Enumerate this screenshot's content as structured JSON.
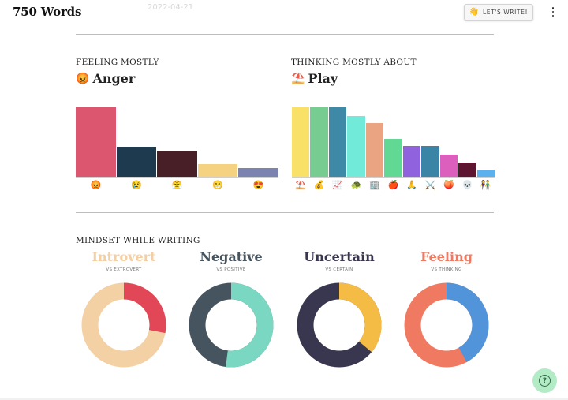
{
  "header": {
    "app_title": "750 Words",
    "faded_date": "2022-04-21",
    "write_button_emoji": "👋",
    "write_button_label": "LET'S WRITE!"
  },
  "feeling": {
    "label": "FEELING MOSTLY",
    "value": "Anger",
    "value_emoji": "😡"
  },
  "thinking": {
    "label": "THINKING MOSTLY ABOUT",
    "value": "Play",
    "value_emoji": "⛱️"
  },
  "chart_data": [
    {
      "type": "bar",
      "categories": [
        "😡",
        "😢",
        "😤",
        "😁",
        "😍"
      ],
      "values": [
        100,
        43,
        38,
        18,
        12
      ],
      "colors": [
        "#dd566f",
        "#1d3a4e",
        "#481e27",
        "#f5d281",
        "#7d83b1"
      ]
    },
    {
      "type": "bar",
      "categories": [
        "⛱️",
        "💰",
        "📈",
        "🐢",
        "🏢",
        "🍎",
        "🙏",
        "⚔️",
        "🍑",
        "💀",
        "👫"
      ],
      "values": [
        100,
        100,
        100,
        88,
        77,
        55,
        44,
        44,
        32,
        21,
        10
      ],
      "colors": [
        "#f9e066",
        "#77cd91",
        "#3e89a6",
        "#71ead9",
        "#eba481",
        "#61d995",
        "#9062dd",
        "#3a84a5",
        "#dc5ebd",
        "#5e1530",
        "#5bb1ed"
      ]
    }
  ],
  "mindset": {
    "label": "MINDSET WHILE WRITING",
    "donuts": [
      {
        "title": "Introvert",
        "subtitle": "VS EXTROVERT",
        "title_color": "#f4cfa3",
        "fraction": 0.28,
        "main_color": "#f3d1a5",
        "minor_color": "#e14757"
      },
      {
        "title": "Negative",
        "subtitle": "VS POSITIVE",
        "title_color": "#465460",
        "fraction": 0.52,
        "main_color": "#465460",
        "minor_color": "#7ad7c1"
      },
      {
        "title": "Uncertain",
        "subtitle": "VS CERTAIN",
        "title_color": "#393750",
        "fraction": 0.36,
        "main_color": "#393750",
        "minor_color": "#f5bc45"
      },
      {
        "title": "Feeling",
        "subtitle": "VS THINKING",
        "title_color": "#ef7a61",
        "fraction": 0.42,
        "main_color": "#ef7a61",
        "minor_color": "#5294d9"
      }
    ]
  },
  "help": {
    "icon_label": "?"
  }
}
